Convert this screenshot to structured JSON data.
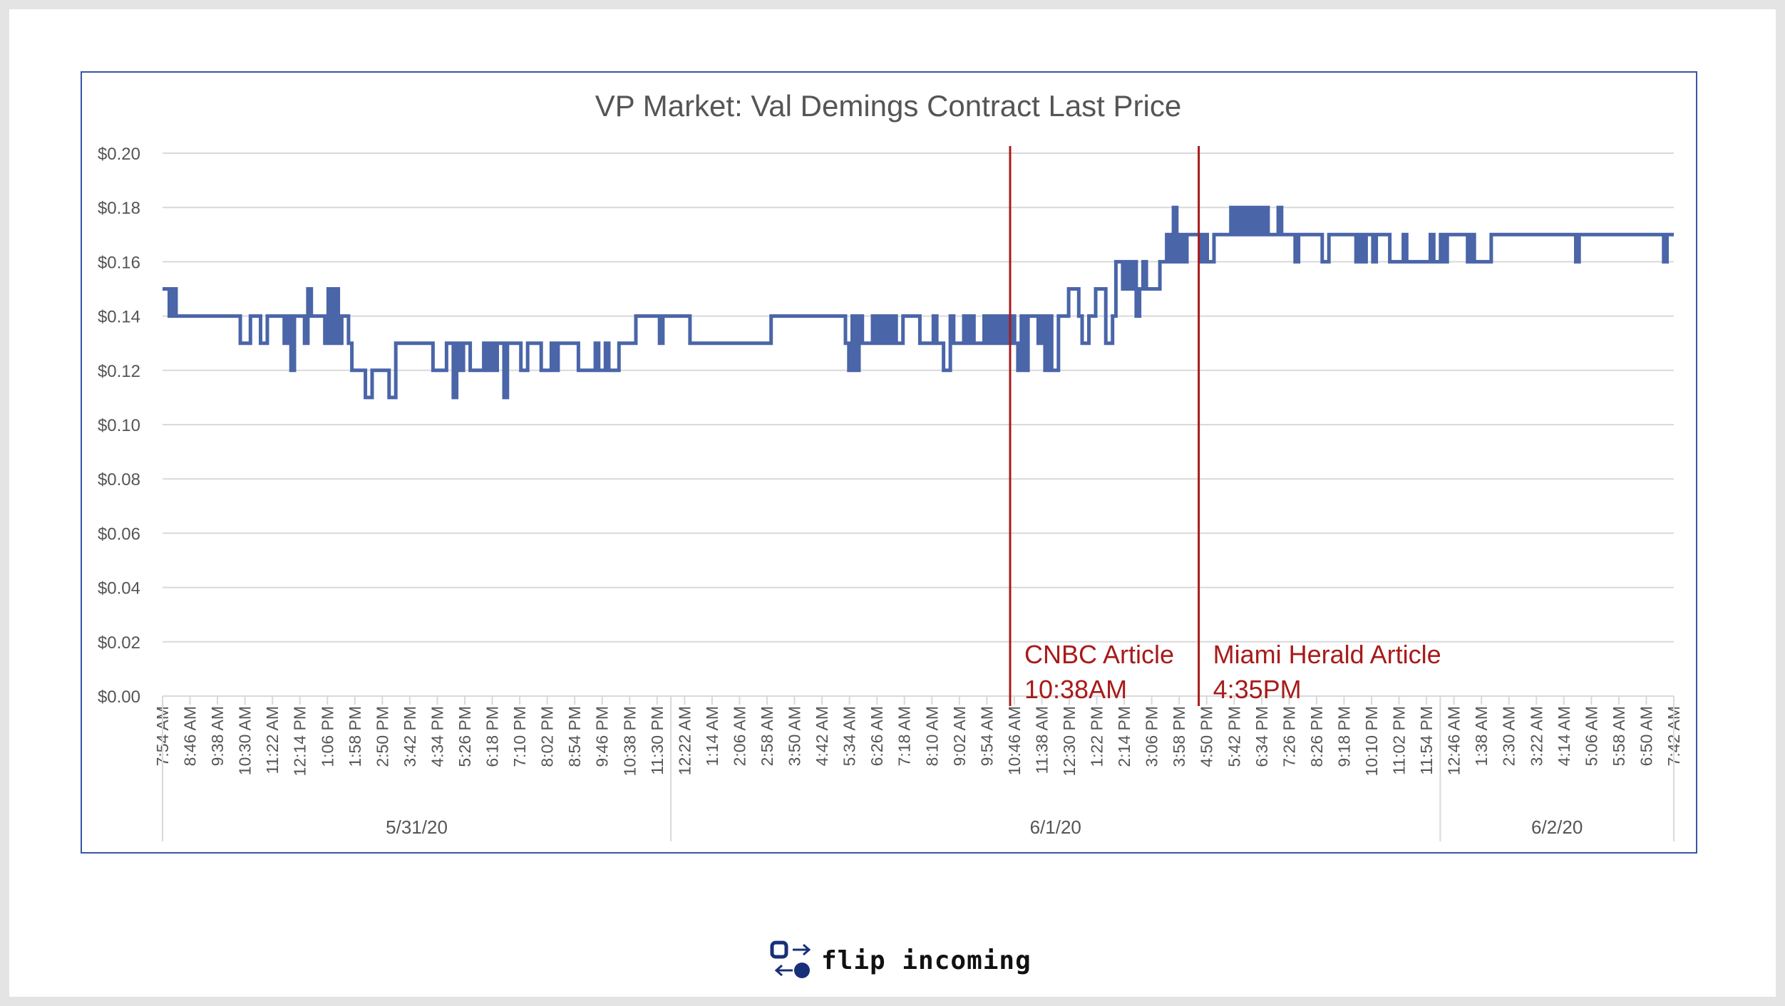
{
  "chart_data": {
    "type": "line",
    "title": "VP Market: Val Demings Contract Last Price",
    "xlabel": "",
    "ylabel": "",
    "ylim": [
      0,
      0.2
    ],
    "y_ticks": [
      "$0.00",
      "$0.02",
      "$0.04",
      "$0.06",
      "$0.08",
      "$0.10",
      "$0.12",
      "$0.14",
      "$0.16",
      "$0.18",
      "$0.20"
    ],
    "grid": "horizontal",
    "legend": "none",
    "line_color": "#4a65a8",
    "annotation_color": "#a81a1a",
    "date_groups": [
      {
        "label": "5/31/20",
        "ticks": [
          "7:54 AM",
          "8:46 AM",
          "9:38 AM",
          "10:30 AM",
          "11:22 AM",
          "12:14 PM",
          "1:06 PM",
          "1:58 PM",
          "2:50 PM",
          "3:42 PM",
          "4:34 PM",
          "5:26 PM",
          "6:18 PM",
          "7:10 PM",
          "8:02 PM",
          "8:54 PM",
          "9:46 PM",
          "10:38 PM",
          "11:30 PM"
        ]
      },
      {
        "label": "6/1/20",
        "ticks": [
          "12:22 AM",
          "1:14 AM",
          "2:06 AM",
          "2:58 AM",
          "3:50 AM",
          "4:42 AM",
          "5:34 AM",
          "6:26 AM",
          "7:18 AM",
          "8:10 AM",
          "9:02 AM",
          "9:54 AM",
          "10:46 AM",
          "11:38 AM",
          "12:30 PM",
          "1:22 PM",
          "2:14 PM",
          "3:06 PM",
          "3:58 PM",
          "4:50 PM",
          "5:42 PM",
          "6:34 PM",
          "7:26 PM",
          "8:26 PM",
          "9:18 PM",
          "10:10 PM",
          "11:02 PM",
          "11:54 PM"
        ]
      },
      {
        "label": "6/2/20",
        "ticks": [
          "12:46 AM",
          "1:38 AM",
          "2:30 AM",
          "3:22 AM",
          "4:14 AM",
          "5:06 AM",
          "5:58 AM",
          "6:50 AM",
          "7:42 AM"
        ]
      }
    ],
    "series": [
      {
        "values": [
          0.15,
          0.15,
          0.14,
          0.15,
          0.14,
          0.14,
          0.14,
          0.14,
          0.14,
          0.14,
          0.14,
          0.14,
          0.14,
          0.14,
          0.14,
          0.14,
          0.14,
          0.14,
          0.14,
          0.14,
          0.14,
          0.14,
          0.14,
          0.13,
          0.13,
          0.13,
          0.14,
          0.14,
          0.14,
          0.13,
          0.13,
          0.14,
          0.14,
          0.14,
          0.14,
          0.14,
          0.13,
          0.14,
          0.12,
          0.14,
          0.14,
          0.14,
          0.13,
          0.15,
          0.14,
          0.14,
          0.14,
          0.14,
          0.13,
          0.15,
          0.13,
          0.15,
          0.13,
          0.14,
          0.14,
          0.13,
          0.12,
          0.12,
          0.12,
          0.12,
          0.11,
          0.11,
          0.12,
          0.12,
          0.12,
          0.12,
          0.12,
          0.11,
          0.11,
          0.13,
          0.13,
          0.13,
          0.13,
          0.13,
          0.13,
          0.13,
          0.13,
          0.13,
          0.13,
          0.13,
          0.12,
          0.12,
          0.12,
          0.12,
          0.13,
          0.13,
          0.11,
          0.13,
          0.12,
          0.13,
          0.13,
          0.12,
          0.12,
          0.12,
          0.12,
          0.13,
          0.12,
          0.13,
          0.12,
          0.13,
          0.13,
          0.11,
          0.13,
          0.13,
          0.13,
          0.13,
          0.12,
          0.12,
          0.13,
          0.13,
          0.13,
          0.13,
          0.12,
          0.12,
          0.12,
          0.13,
          0.12,
          0.13,
          0.13,
          0.13,
          0.13,
          0.13,
          0.13,
          0.12,
          0.12,
          0.12,
          0.12,
          0.12,
          0.13,
          0.12,
          0.12,
          0.13,
          0.12,
          0.12,
          0.12,
          0.13,
          0.13,
          0.13,
          0.13,
          0.13,
          0.14,
          0.14,
          0.14,
          0.14,
          0.14,
          0.14,
          0.14,
          0.13,
          0.14,
          0.14,
          0.14,
          0.14,
          0.14,
          0.14,
          0.14,
          0.14,
          0.13,
          0.13,
          0.13,
          0.13,
          0.13,
          0.13,
          0.13,
          0.13,
          0.13,
          0.13,
          0.13,
          0.13,
          0.13,
          0.13,
          0.13,
          0.13,
          0.13,
          0.13,
          0.13,
          0.13,
          0.13,
          0.13,
          0.13,
          0.13,
          0.14,
          0.14,
          0.14,
          0.14,
          0.14,
          0.14,
          0.14,
          0.14,
          0.14,
          0.14,
          0.14,
          0.14,
          0.14,
          0.14,
          0.14,
          0.14,
          0.14,
          0.14,
          0.14,
          0.14,
          0.14,
          0.14,
          0.13,
          0.12,
          0.14,
          0.12,
          0.14,
          0.13,
          0.13,
          0.13,
          0.14,
          0.13,
          0.14,
          0.13,
          0.14,
          0.13,
          0.14,
          0.13,
          0.13,
          0.14,
          0.14,
          0.14,
          0.14,
          0.14,
          0.13,
          0.13,
          0.13,
          0.13,
          0.14,
          0.13,
          0.13,
          0.12,
          0.12,
          0.14,
          0.13,
          0.13,
          0.13,
          0.14,
          0.13,
          0.14,
          0.13,
          0.13,
          0.13,
          0.14,
          0.13,
          0.14,
          0.13,
          0.14,
          0.13,
          0.14,
          0.13,
          0.14,
          0.13,
          0.12,
          0.14,
          0.12,
          0.14,
          0.14,
          0.14,
          0.13,
          0.14,
          0.12,
          0.14,
          0.12,
          0.12,
          0.14,
          0.14,
          0.14,
          0.15,
          0.15,
          0.15,
          0.14,
          0.13,
          0.13,
          0.14,
          0.14,
          0.15,
          0.15,
          0.15,
          0.13,
          0.13,
          0.14,
          0.16,
          0.16,
          0.15,
          0.16,
          0.15,
          0.16,
          0.14,
          0.15,
          0.16,
          0.15,
          0.15,
          0.15,
          0.15,
          0.16,
          0.16,
          0.17,
          0.16,
          0.18,
          0.16,
          0.17,
          0.16,
          0.17,
          0.17,
          0.17,
          0.17,
          0.16,
          0.17,
          0.16,
          0.16,
          0.17,
          0.17,
          0.17,
          0.17,
          0.17,
          0.18,
          0.17,
          0.18,
          0.17,
          0.18,
          0.17,
          0.18,
          0.17,
          0.18,
          0.17,
          0.18,
          0.17,
          0.17,
          0.17,
          0.18,
          0.17,
          0.17,
          0.17,
          0.17,
          0.16,
          0.17,
          0.17,
          0.17,
          0.17,
          0.17,
          0.17,
          0.17,
          0.16,
          0.16,
          0.17,
          0.17,
          0.17,
          0.17,
          0.17,
          0.17,
          0.17,
          0.17,
          0.16,
          0.17,
          0.16,
          0.17,
          0.17,
          0.16,
          0.17,
          0.17,
          0.17,
          0.17,
          0.16,
          0.16,
          0.16,
          0.16,
          0.17,
          0.16,
          0.16,
          0.16,
          0.16,
          0.16,
          0.16,
          0.16,
          0.17,
          0.16,
          0.16,
          0.17,
          0.16,
          0.17,
          0.17,
          0.17,
          0.17,
          0.17,
          0.17,
          0.16,
          0.17,
          0.16,
          0.16,
          0.16,
          0.16,
          0.16,
          0.17,
          0.17,
          0.17,
          0.17,
          0.17,
          0.17,
          0.17,
          0.17,
          0.17,
          0.17,
          0.17,
          0.17,
          0.17,
          0.17,
          0.17,
          0.17,
          0.17,
          0.17,
          0.17,
          0.17,
          0.17,
          0.17,
          0.17,
          0.17,
          0.17,
          0.16,
          0.17,
          0.17,
          0.17,
          0.17,
          0.17,
          0.17,
          0.17,
          0.17,
          0.17,
          0.17,
          0.17,
          0.17,
          0.17,
          0.17,
          0.17,
          0.17,
          0.17,
          0.17,
          0.17,
          0.17,
          0.17,
          0.17,
          0.17,
          0.17,
          0.17,
          0.16,
          0.17,
          0.17,
          0.17
        ]
      }
    ],
    "annotations": [
      {
        "at_category": "10:38AM",
        "lines": [
          "CNBC Article",
          "10:38AM"
        ]
      },
      {
        "at_category": "4:35PM",
        "lines": [
          "Miami Herald Article",
          "4:35PM"
        ]
      }
    ]
  },
  "brand": {
    "name": "flip incoming",
    "icon": "flip-incoming-logo-icon",
    "icon_color": "#1a2f7a"
  }
}
